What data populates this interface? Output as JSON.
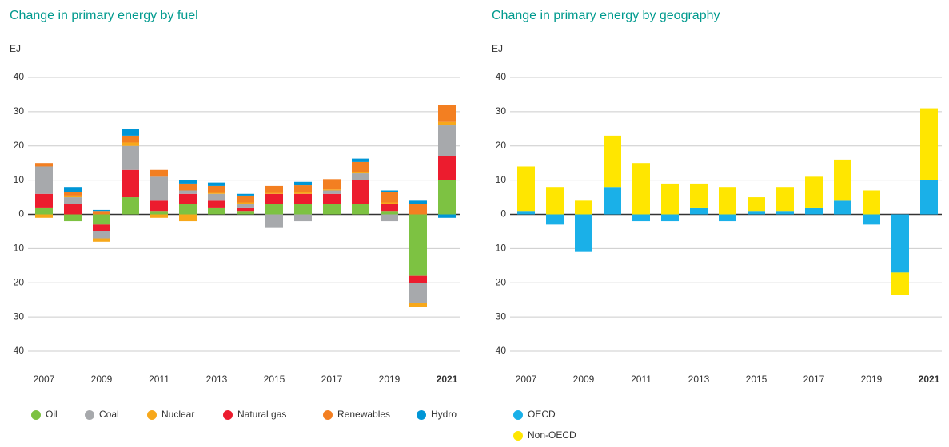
{
  "chart_data": [
    {
      "type": "bar",
      "stacked": true,
      "title": "Change in primary energy by fuel",
      "y_label": "EJ",
      "categories": [
        "2007",
        null,
        "2009",
        null,
        "2011",
        null,
        "2013",
        null,
        "2015",
        null,
        "2017",
        null,
        "2019",
        null,
        "2021"
      ],
      "series": [
        {
          "name": "Oil",
          "color": "#7dc242",
          "values": [
            2,
            -2,
            -3,
            5,
            1,
            3,
            2,
            1,
            3,
            3,
            3,
            3,
            1,
            -18,
            10
          ]
        },
        {
          "name": "Coal",
          "color": "#a7a9ac",
          "values": [
            8,
            2,
            -2,
            7,
            7,
            1,
            2,
            1,
            -4,
            -2,
            1,
            2,
            -2,
            -6,
            9
          ]
        },
        {
          "name": "Nuclear",
          "color": "#f7a81b",
          "values": [
            -1,
            0.5,
            -1,
            1,
            -1,
            -2,
            0.3,
            0.5,
            0.3,
            0.5,
            0.3,
            0.3,
            0.5,
            -1,
            1
          ]
        },
        {
          "name": "Natural gas",
          "color": "#ec1c2e",
          "values": [
            4,
            3,
            -2,
            8,
            3,
            3,
            2,
            1,
            3,
            3,
            3,
            7,
            2,
            -2,
            7
          ]
        },
        {
          "name": "Renewables",
          "color": "#f37f21",
          "values": [
            1,
            1,
            1,
            2,
            2,
            2,
            2,
            2,
            2,
            2,
            3,
            3,
            3,
            3,
            5
          ]
        },
        {
          "name": "Hydro",
          "color": "#0096d6",
          "values": [
            0,
            1.5,
            0.3,
            2,
            0,
            1,
            1,
            0.5,
            0,
            1,
            0,
            1,
            0.5,
            1,
            -1
          ]
        }
      ],
      "ylim": [
        -40,
        40
      ],
      "yticks": [
        {
          "value": -40,
          "label": "40"
        },
        {
          "value": -30,
          "label": "30"
        },
        {
          "value": -20,
          "label": "20"
        },
        {
          "value": -10,
          "label": "10"
        },
        0,
        10,
        20,
        30,
        40
      ],
      "grid": true
    },
    {
      "type": "bar",
      "stacked": true,
      "title": "Change in primary energy by geography",
      "y_label": "EJ",
      "categories": [
        "2007",
        null,
        "2009",
        null,
        "2011",
        null,
        "2013",
        null,
        "2015",
        null,
        "2017",
        null,
        "2019",
        null,
        "2021"
      ],
      "series": [
        {
          "name": "OECD",
          "color": "#1ab0e8",
          "values": [
            1,
            -3,
            -11,
            8,
            -2,
            -2,
            2,
            -2,
            1,
            1,
            2,
            4,
            -3,
            -17,
            10
          ]
        },
        {
          "name": "Non-OECD",
          "color": "#ffe600",
          "values": [
            13,
            8,
            4,
            15,
            15,
            9,
            7,
            8,
            4,
            7,
            9,
            12,
            7,
            -6.5,
            21
          ]
        }
      ],
      "ylim": [
        -40,
        40
      ],
      "yticks": [
        {
          "value": -40,
          "label": "40"
        },
        {
          "value": -30,
          "label": "30"
        },
        {
          "value": -20,
          "label": "20"
        },
        {
          "value": -10,
          "label": "10"
        },
        0,
        10,
        20,
        30,
        40
      ],
      "grid": true
    }
  ]
}
